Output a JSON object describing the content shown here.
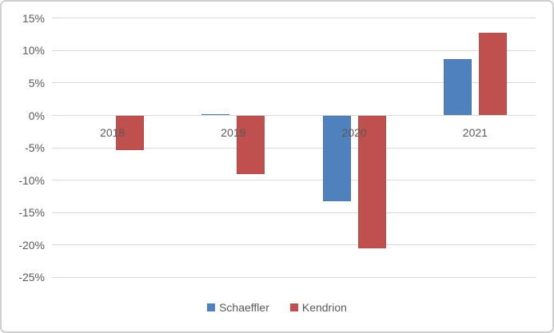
{
  "chart_data": {
    "type": "bar",
    "title": "",
    "xlabel": "",
    "ylabel": "",
    "categories": [
      "2018",
      "2019",
      "2020",
      "2021"
    ],
    "series": [
      {
        "name": "Schaeffler",
        "color": "#4F81BD",
        "values": [
          0.0,
          0.2,
          -13.2,
          8.7
        ]
      },
      {
        "name": "Kendrion",
        "color": "#C0504D",
        "values": [
          -5.4,
          -9.0,
          -20.5,
          12.8
        ]
      }
    ],
    "ylim": [
      -25,
      15
    ],
    "ytick_step": 5,
    "ytick_labels": [
      "15%",
      "10%",
      "5%",
      "0%",
      "-5%",
      "-10%",
      "-15%",
      "-20%",
      "-25%"
    ],
    "ytick_values": [
      15,
      10,
      5,
      0,
      -5,
      -10,
      -15,
      -20,
      -25
    ],
    "grid": true,
    "legend_position": "bottom",
    "value_format": "percent"
  },
  "colors": {
    "gridline": "#d9d9d9",
    "text": "#595959",
    "frame_border": "#cfcfcf",
    "background": "#ffffff"
  }
}
